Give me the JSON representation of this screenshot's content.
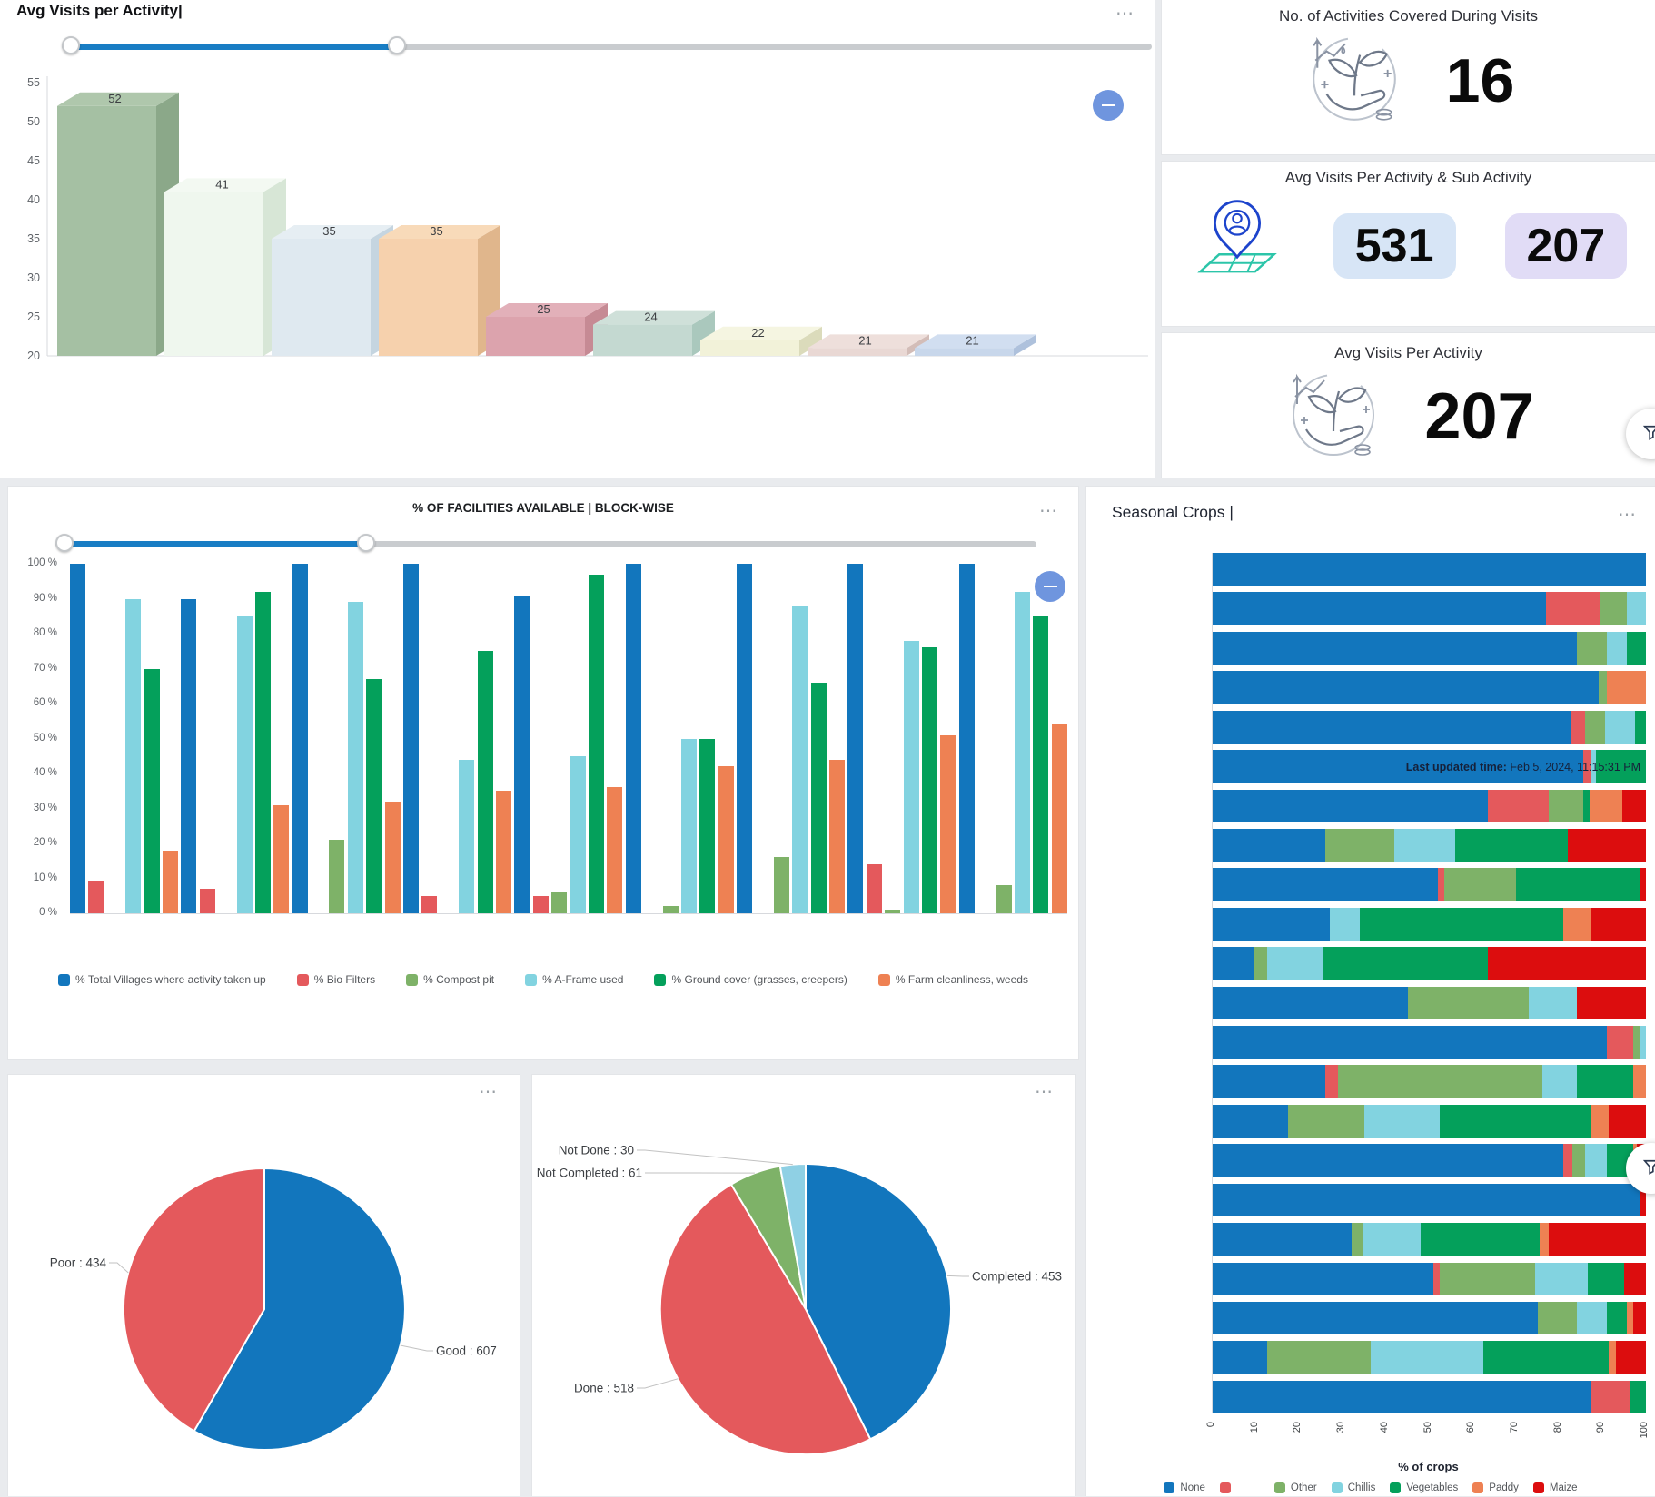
{
  "kpis": [
    {
      "title": "No. of Activities Covered During Visits",
      "value": "16",
      "icon": "plant-growth-hand-icon"
    },
    {
      "title": "Avg Visits Per Activity & Sub Activity",
      "values": [
        "531",
        "207"
      ],
      "value_bg": [
        "#d7e5f6",
        "#e1dcf6"
      ],
      "icon": "person-location-map-icon"
    },
    {
      "title": "Avg Visits Per Activity",
      "value": "207",
      "icon": "plant-growth-hand-icon"
    }
  ],
  "misc": {
    "watermark_label": "Last updated time:",
    "watermark_time": " Feb 5, 2024, 11:15:31 PM",
    "cursor": "|"
  },
  "chart_data": [
    {
      "id": "avg-visits-per-activity",
      "type": "bar",
      "title": "Avg Visits per Activity",
      "categories": [
        "",
        "",
        "",
        "",
        "",
        "",
        "",
        "",
        ""
      ],
      "values": [
        52,
        41,
        35,
        35,
        25,
        24,
        22,
        21,
        21
      ],
      "ylim": [
        20,
        55
      ],
      "ytick_step": 5,
      "style": "3d",
      "bar_colors": [
        {
          "front": "#a5c0a3",
          "top": "#afc7ac",
          "side": "#8ba889"
        },
        {
          "front": "#eff7ee",
          "top": "#f3f9f2",
          "side": "#d7e6d6"
        },
        {
          "front": "#dfe9f0",
          "top": "#e6eef3",
          "side": "#c5d5e0"
        },
        {
          "front": "#f6d1ad",
          "top": "#f8dab9",
          "side": "#e0b68c"
        },
        {
          "front": "#dca3ad",
          "top": "#e2b0b9",
          "side": "#c68a94"
        },
        {
          "front": "#c4d9d1",
          "top": "#cfe0d9",
          "side": "#aac8bd"
        },
        {
          "front": "#f2f2d9",
          "top": "#f5f5e1",
          "side": "#dbdbbb"
        },
        {
          "front": "#e9d8d4",
          "top": "#eedfdb",
          "side": "#d3bdb8"
        },
        {
          "front": "#c8d7eb",
          "top": "#d1def0",
          "side": "#aec1dc"
        }
      ]
    },
    {
      "id": "facilities-block-wise",
      "type": "bar",
      "title": "% OF FACILITIES AVAILABLE | BLOCK-WISE",
      "categories": [
        "",
        "",
        "",
        "",
        "",
        "",
        "",
        "",
        ""
      ],
      "ylim": [
        0,
        100
      ],
      "ytick_step": 10,
      "ytick_suffix": " %",
      "legend_position": "bottom",
      "series": [
        {
          "name": "% Total Villages where activity taken up",
          "color": "#1276bd",
          "values": [
            100,
            90,
            100,
            100,
            91,
            100,
            100,
            100,
            100
          ]
        },
        {
          "name": "% Bio Filters",
          "color": "#e4595c",
          "values": [
            9,
            7,
            0,
            5,
            5,
            0,
            0,
            14,
            0
          ]
        },
        {
          "name": "% Compost pit",
          "color": "#7eb268",
          "values": [
            0,
            0,
            21,
            0,
            6,
            2,
            16,
            1,
            8
          ]
        },
        {
          "name": "% A-Frame used",
          "color": "#82d3e0",
          "values": [
            90,
            85,
            89,
            44,
            45,
            50,
            88,
            78,
            92
          ]
        },
        {
          "name": "% Ground cover (grasses, creepers)",
          "color": "#04a05b",
          "values": [
            70,
            92,
            67,
            75,
            97,
            50,
            66,
            76,
            85
          ]
        },
        {
          "name": "% Farm cleanliness, weeds",
          "color": "#ee8153",
          "values": [
            18,
            31,
            32,
            35,
            36,
            42,
            44,
            51,
            54
          ]
        }
      ]
    },
    {
      "id": "quality-pie",
      "type": "pie",
      "label_format": "{name} : {value}",
      "slices": [
        {
          "label": "Good",
          "value": 607,
          "color": "#1276bd"
        },
        {
          "label": "Poor",
          "value": 434,
          "color": "#e4595c"
        }
      ]
    },
    {
      "id": "completion-pie",
      "type": "pie",
      "label_format": "{name} : {value}",
      "slices": [
        {
          "label": "Completed",
          "value": 453,
          "color": "#1276bd"
        },
        {
          "label": "Done",
          "value": 518,
          "color": "#e4595c"
        },
        {
          "label": "Not Completed",
          "value": 61,
          "color": "#7eb268"
        },
        {
          "label": "Not Done",
          "value": 30,
          "color": "#8fd0e4"
        }
      ]
    },
    {
      "id": "seasonal-crops",
      "type": "bar-stacked-horizontal",
      "title": "Seasonal Crops",
      "xlabel": "% of crops",
      "xticks": [
        0,
        10,
        20,
        30,
        40,
        50,
        60,
        70,
        80,
        90,
        100
      ],
      "series_legend": [
        {
          "label": "None",
          "color": "#1276bd"
        },
        {
          "label": "",
          "color": "#e4595c"
        },
        {
          "label": "Other",
          "color": "#7eb268"
        },
        {
          "label": "Chillis",
          "color": "#82d3e0"
        },
        {
          "label": "Vegetables",
          "color": "#04a05b"
        },
        {
          "label": "Paddy",
          "color": "#ee8153"
        },
        {
          "label": "Maize",
          "color": "#dc0d0e"
        }
      ],
      "rows": [
        [
          100,
          0,
          0,
          0,
          0,
          0,
          0
        ],
        [
          77,
          12.5,
          6,
          4.5,
          0,
          0,
          0
        ],
        [
          84,
          0,
          7,
          4.5,
          4.5,
          0,
          0
        ],
        [
          89,
          0,
          2,
          0,
          0,
          9,
          0
        ],
        [
          82.5,
          3.5,
          4.5,
          7,
          2.5,
          0,
          0
        ],
        [
          85.5,
          2,
          0,
          1,
          11.5,
          0,
          0
        ],
        [
          63.5,
          14,
          8,
          0,
          1.5,
          7.5,
          5.5
        ],
        [
          26,
          0,
          16,
          14,
          26,
          0,
          18
        ],
        [
          52,
          1.5,
          16.5,
          0,
          28.5,
          0,
          1.5
        ],
        [
          27,
          0,
          0,
          7,
          47,
          6.5,
          12.5
        ],
        [
          9.5,
          0,
          3,
          13,
          38,
          0,
          36.5
        ],
        [
          45,
          0,
          28,
          11,
          0,
          0,
          16
        ],
        [
          91,
          6,
          1.5,
          1.5,
          0,
          0,
          0
        ],
        [
          26,
          3,
          47,
          8,
          13,
          3,
          0
        ],
        [
          17.5,
          0,
          17.5,
          17.5,
          35,
          4,
          8.5
        ],
        [
          81,
          2,
          3,
          5,
          6,
          1,
          2
        ],
        [
          98.5,
          0,
          0,
          0,
          0,
          0,
          1.5
        ],
        [
          32,
          0,
          2.5,
          13.5,
          27.5,
          2,
          22.5
        ],
        [
          51,
          1.5,
          22,
          12,
          8.5,
          0,
          5
        ],
        [
          75,
          0,
          9,
          7,
          4.5,
          1.5,
          3
        ],
        [
          12.5,
          0,
          24,
          26,
          29,
          1.5,
          7
        ],
        [
          87.5,
          9,
          0,
          0,
          3.5,
          0,
          0
        ]
      ]
    }
  ]
}
